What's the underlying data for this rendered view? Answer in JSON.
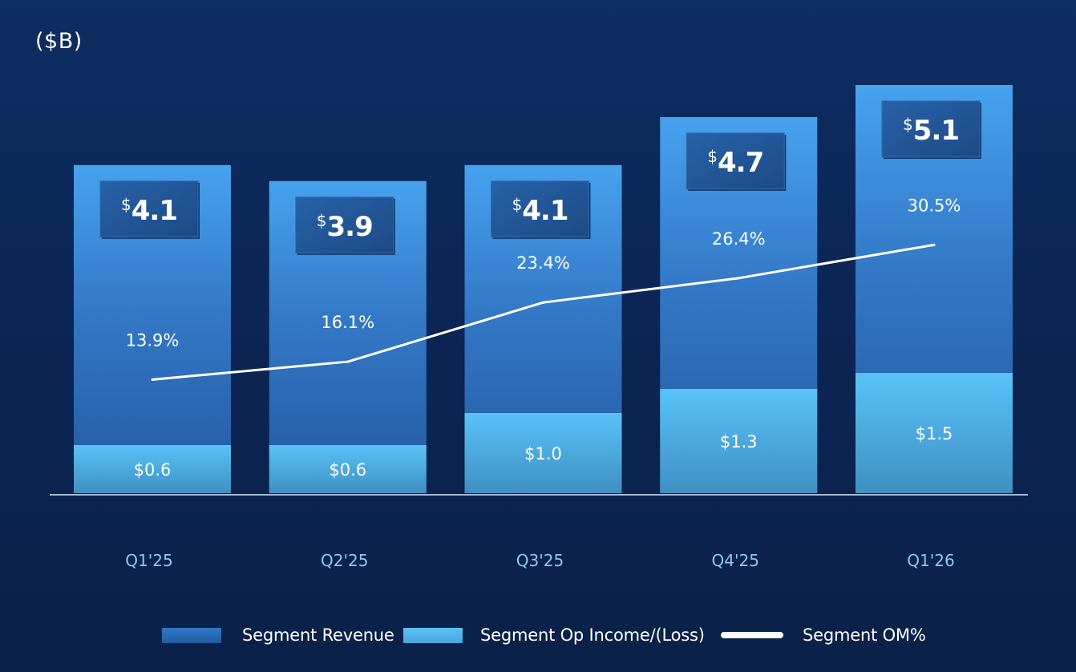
{
  "unit_label": "($B)",
  "chart_data": {
    "type": "bar",
    "subtype": "overlapping bars with line overlay",
    "title": "",
    "unit": "($B)",
    "xlabel": "",
    "ylabel": "",
    "grid": false,
    "legend_position": "bottom",
    "categories": [
      "Q1'25",
      "Q2'25",
      "Q3'25",
      "Q4'25",
      "Q1'26"
    ],
    "series": [
      {
        "name": "Segment Revenue",
        "type": "bar",
        "color": "#3b8ad8",
        "values": [
          4.1,
          3.9,
          4.1,
          4.7,
          5.1
        ],
        "labels": [
          "4.1",
          "3.9",
          "4.1",
          "4.7",
          "5.1"
        ],
        "label_prefix": "$"
      },
      {
        "name": "Segment Op Income/(Loss)",
        "type": "bar",
        "color": "#55bdf3",
        "values": [
          0.6,
          0.6,
          1.0,
          1.3,
          1.5
        ],
        "labels": [
          "$0.6",
          "$0.6",
          "$1.0",
          "$1.3",
          "$1.5"
        ]
      },
      {
        "name": "Segment OM%",
        "type": "line",
        "color": "#ffffff",
        "values": [
          13.9,
          16.1,
          23.4,
          26.4,
          30.5
        ],
        "labels": [
          "13.9%",
          "16.1%",
          "23.4%",
          "26.4%",
          "30.5%"
        ]
      }
    ]
  },
  "legend": {
    "revenue": "Segment Revenue",
    "op_income": "Segment Op Income/(Loss)",
    "om_pct": "Segment OM%"
  },
  "colors": {
    "background": "#0b2452",
    "revenue_top": "#45a0ee",
    "revenue_bottom": "#2459a1",
    "op_income_top": "#58c2f7",
    "op_income_bottom": "#3f8fc4",
    "label_box": "#21559a",
    "axis_label": "#8cc8f5",
    "line": "#ffffff"
  }
}
